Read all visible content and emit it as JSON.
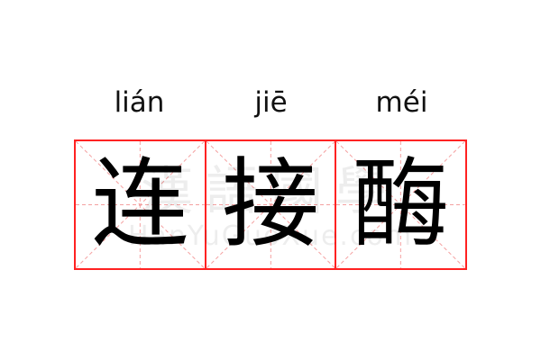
{
  "entries": [
    {
      "pinyin": "lián",
      "character": "连"
    },
    {
      "pinyin": "jiē",
      "character": "接"
    },
    {
      "pinyin": "méi",
      "character": "酶"
    }
  ],
  "watermark": {
    "logo_text": "漢語國學",
    "site": "HanYuGuoXue.com"
  },
  "colors": {
    "grid_border": "#ff2222",
    "guide_lines": "#f4a0a0",
    "text": "#000000"
  }
}
